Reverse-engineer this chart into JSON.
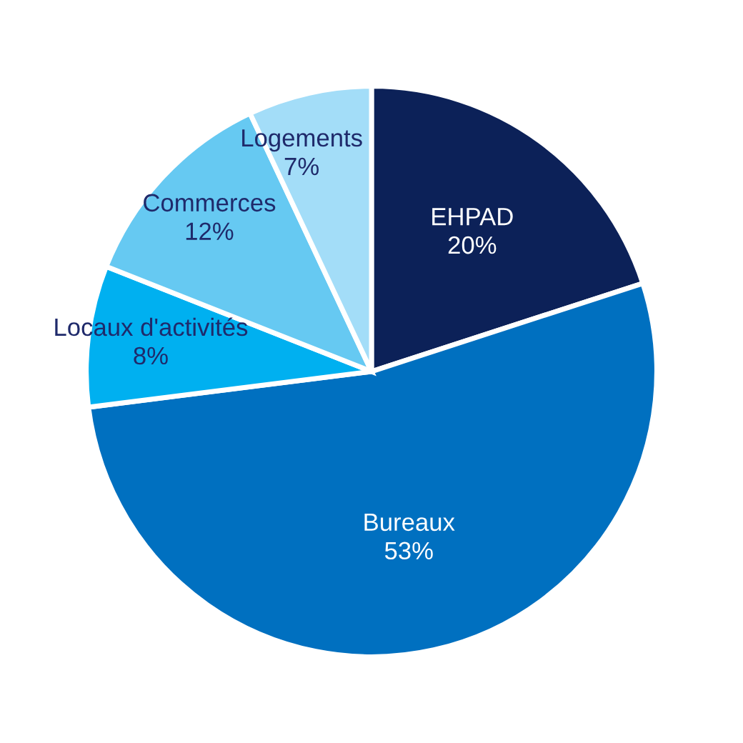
{
  "chart_data": {
    "type": "pie",
    "categories": [
      "EHPAD",
      "Bureaux",
      "Locaux d'activités",
      "Commerces",
      "Logements"
    ],
    "values": [
      20,
      53,
      8,
      12,
      7
    ],
    "colors": [
      "#0c2158",
      "#0070c0",
      "#00b0f0",
      "#66c9f2",
      "#a3ddf8"
    ],
    "value_labels": [
      "20%",
      "53%",
      "8%",
      "12%",
      "7%"
    ]
  }
}
